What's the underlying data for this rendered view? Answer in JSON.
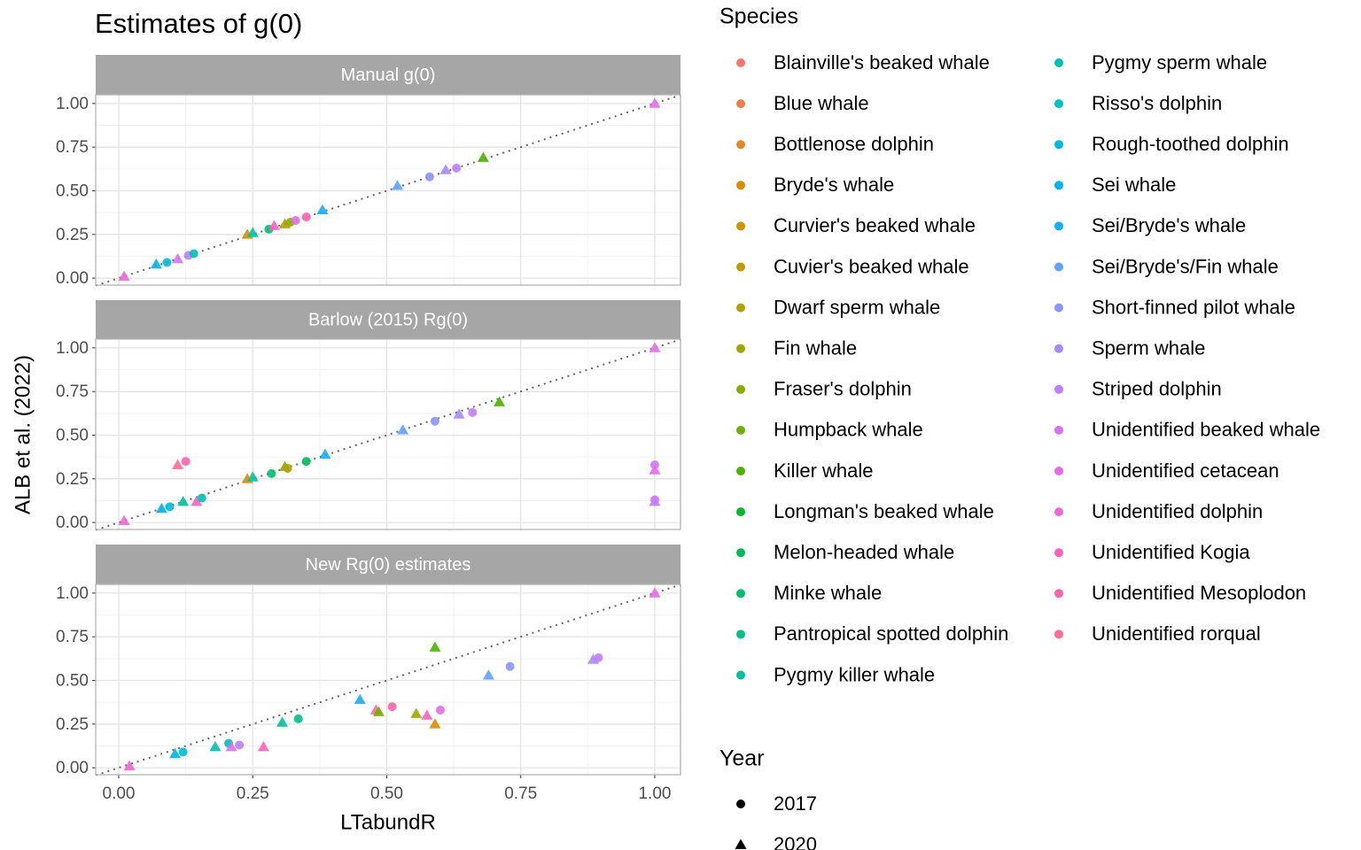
{
  "chart_data": {
    "type": "scatter",
    "title": "Estimates of g(0)",
    "x_label": "LTabundR",
    "y_label": "ALB et al. (2022)",
    "xlim": [
      -0.043,
      1.048
    ],
    "ylim": [
      -0.04,
      1.05
    ],
    "xticks": [
      {
        "value": 0,
        "label": "0.00"
      },
      {
        "value": 0.25,
        "label": "0.25"
      },
      {
        "value": 0.5,
        "label": "0.50"
      },
      {
        "value": 0.75,
        "label": "0.75"
      },
      {
        "value": 1,
        "label": "1.00"
      }
    ],
    "yticks": [
      {
        "value": 0,
        "label": "0.00"
      },
      {
        "value": 0.25,
        "label": "0.25"
      },
      {
        "value": 0.5,
        "label": "0.50"
      },
      {
        "value": 0.75,
        "label": "0.75"
      },
      {
        "value": 1,
        "label": "1.00"
      }
    ],
    "grid": true,
    "species_title": "Species",
    "species": [
      {
        "name": "Blainville's beaked whale",
        "color": "#F8766D"
      },
      {
        "name": "Blue whale",
        "color": "#F07E4D"
      },
      {
        "name": "Bottlenose dolphin",
        "color": "#E7852B"
      },
      {
        "name": "Bryde's whale",
        "color": "#DC8C00"
      },
      {
        "name": "Curvier's beaked whale",
        "color": "#CF9400"
      },
      {
        "name": "Cuvier's beaked whale",
        "color": "#C19A00"
      },
      {
        "name": "Dwarf sperm whale",
        "color": "#B0A000"
      },
      {
        "name": "Fin whale",
        "color": "#9EA700"
      },
      {
        "name": "Fraser's dolphin",
        "color": "#89AC00"
      },
      {
        "name": "Humpback whale",
        "color": "#6EB100"
      },
      {
        "name": "Killer whale",
        "color": "#47B500"
      },
      {
        "name": "Longman's beaked whale",
        "color": "#00B92D"
      },
      {
        "name": "Melon-headed whale",
        "color": "#00BB55"
      },
      {
        "name": "Minke whale",
        "color": "#00BE70"
      },
      {
        "name": "Pantropical spotted dolphin",
        "color": "#00C088"
      },
      {
        "name": "Pygmy killer whale",
        "color": "#00C19F"
      },
      {
        "name": "Pygmy sperm whale",
        "color": "#00C0B4"
      },
      {
        "name": "Risso's dolphin",
        "color": "#00BEC8"
      },
      {
        "name": "Rough-toothed dolphin",
        "color": "#00BADA"
      },
      {
        "name": "Sei whale",
        "color": "#00B4EA"
      },
      {
        "name": "Sei/Bryde's whale",
        "color": "#1AACF8"
      },
      {
        "name": "Sei/Bryde's/Fin whale",
        "color": "#5FA2FF"
      },
      {
        "name": "Short-finned pilot whale",
        "color": "#8995FF"
      },
      {
        "name": "Sperm whale",
        "color": "#A889FF"
      },
      {
        "name": "Striped dolphin",
        "color": "#C17DFD"
      },
      {
        "name": "Unidentified beaked whale",
        "color": "#D573F5"
      },
      {
        "name": "Unidentified cetacean",
        "color": "#E66AE8"
      },
      {
        "name": "Unidentified dolphin",
        "color": "#F364D7"
      },
      {
        "name": "Unidentified Kogia",
        "color": "#FC61C2"
      },
      {
        "name": "Unidentified Mesoplodon",
        "color": "#FF63AB"
      },
      {
        "name": "Unidentified rorqual",
        "color": "#FF6A92"
      }
    ],
    "year_title": "Year",
    "years": [
      {
        "label": "2017",
        "shape": "circle"
      },
      {
        "label": "2020",
        "shape": "triangle"
      }
    ],
    "facets": [
      {
        "title": "Manual g(0)",
        "x": [
          0.01,
          0.07,
          0.09,
          0.11,
          0.13,
          0.14,
          0.24,
          0.25,
          0.28,
          0.29,
          0.31,
          0.32,
          0.33,
          0.35,
          0.38,
          0.52,
          0.58,
          0.61,
          0.63,
          0.68,
          1.0
        ],
        "y": [
          0.01,
          0.08,
          0.09,
          0.11,
          0.13,
          0.14,
          0.25,
          0.26,
          0.28,
          0.3,
          0.31,
          0.32,
          0.33,
          0.35,
          0.39,
          0.53,
          0.58,
          0.62,
          0.63,
          0.69,
          1.0
        ],
        "species": [
          27,
          19,
          18,
          25,
          24,
          16,
          3,
          15,
          13,
          28,
          6,
          8,
          26,
          29,
          20,
          21,
          22,
          23,
          24,
          10,
          26
        ],
        "year": [
          1,
          1,
          0,
          1,
          0,
          0,
          1,
          1,
          0,
          1,
          1,
          0,
          0,
          0,
          1,
          1,
          0,
          1,
          0,
          1,
          1
        ]
      },
      {
        "title": "Barlow (2015) Rg(0)",
        "x": [
          0.01,
          0.08,
          0.095,
          0.12,
          0.145,
          0.155,
          0.11,
          0.125,
          0.24,
          0.25,
          0.285,
          0.31,
          0.315,
          0.35,
          0.385,
          0.53,
          0.59,
          0.635,
          0.66,
          0.71,
          1.0,
          1.0,
          1.0,
          1.0,
          1.0
        ],
        "y": [
          0.01,
          0.08,
          0.09,
          0.12,
          0.12,
          0.14,
          0.33,
          0.35,
          0.25,
          0.26,
          0.28,
          0.32,
          0.31,
          0.35,
          0.39,
          0.53,
          0.58,
          0.62,
          0.63,
          0.69,
          1.0,
          0.33,
          0.3,
          0.13,
          0.12
        ],
        "species": [
          27,
          19,
          18,
          15,
          28,
          16,
          30,
          29,
          3,
          15,
          13,
          8,
          6,
          12,
          20,
          21,
          22,
          23,
          24,
          10,
          26,
          25,
          26,
          25,
          24
        ],
        "year": [
          1,
          1,
          0,
          1,
          1,
          0,
          1,
          0,
          1,
          1,
          0,
          1,
          0,
          0,
          1,
          1,
          0,
          1,
          0,
          1,
          1,
          0,
          1,
          0,
          1
        ]
      },
      {
        "title": "New Rg(0) estimates",
        "x": [
          0.02,
          0.105,
          0.12,
          0.18,
          0.205,
          0.21,
          0.225,
          0.27,
          0.305,
          0.335,
          0.45,
          0.48,
          0.485,
          0.51,
          0.555,
          0.575,
          0.59,
          0.59,
          0.6,
          0.69,
          0.73,
          0.885,
          0.895,
          1.0
        ],
        "y": [
          0.01,
          0.08,
          0.09,
          0.12,
          0.14,
          0.12,
          0.13,
          0.12,
          0.26,
          0.28,
          0.39,
          0.33,
          0.32,
          0.35,
          0.31,
          0.3,
          0.25,
          0.69,
          0.33,
          0.53,
          0.58,
          0.62,
          0.63,
          1.0
        ],
        "species": [
          27,
          19,
          18,
          16,
          16,
          25,
          24,
          28,
          15,
          14,
          20,
          30,
          9,
          29,
          7,
          28,
          3,
          10,
          26,
          21,
          22,
          23,
          24,
          26
        ],
        "year": [
          1,
          1,
          0,
          1,
          0,
          1,
          0,
          1,
          1,
          0,
          1,
          1,
          1,
          0,
          1,
          1,
          1,
          1,
          0,
          1,
          0,
          1,
          0,
          1
        ]
      }
    ]
  }
}
